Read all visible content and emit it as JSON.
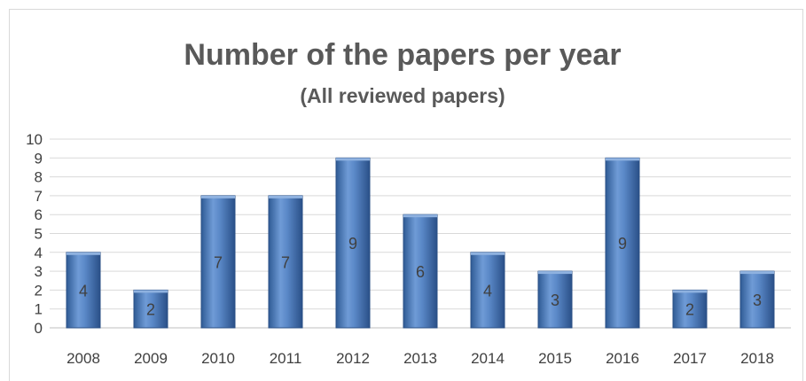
{
  "chart_data": {
    "type": "bar",
    "title": "Number of the papers per year",
    "subtitle": "(All reviewed papers)",
    "xlabel": "",
    "ylabel": "",
    "categories": [
      "2008",
      "2009",
      "2010",
      "2011",
      "2012",
      "2013",
      "2014",
      "2015",
      "2016",
      "2017",
      "2018"
    ],
    "values": [
      4,
      2,
      7,
      7,
      9,
      6,
      4,
      3,
      9,
      2,
      3
    ],
    "ylim": [
      0,
      10
    ],
    "yticks": [
      "0",
      "1",
      "2",
      "3",
      "4",
      "5",
      "6",
      "7",
      "8",
      "9",
      "10"
    ],
    "grid": true,
    "legend": "none",
    "bar_color": "#4f81bd",
    "data_labels": true
  }
}
